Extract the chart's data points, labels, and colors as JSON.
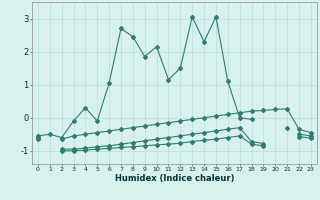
{
  "xlabel": "Humidex (Indice chaleur)",
  "x": [
    0,
    1,
    2,
    3,
    4,
    5,
    6,
    7,
    8,
    9,
    10,
    11,
    12,
    13,
    14,
    15,
    16,
    17,
    18,
    19,
    20,
    21,
    22,
    23
  ],
  "line1": [
    -0.55,
    -0.5,
    -0.6,
    -0.1,
    0.3,
    -0.1,
    1.05,
    2.7,
    2.45,
    1.85,
    2.15,
    1.15,
    1.5,
    3.05,
    2.3,
    3.05,
    1.1,
    0.0,
    -0.05,
    null,
    null,
    -0.3,
    null,
    null
  ],
  "line2": [
    -0.55,
    null,
    -0.65,
    -0.55,
    -0.5,
    -0.45,
    -0.4,
    -0.35,
    -0.3,
    -0.25,
    -0.2,
    -0.15,
    -0.1,
    -0.05,
    0.0,
    0.05,
    0.1,
    0.15,
    0.2,
    0.22,
    0.25,
    0.27,
    -0.35,
    -0.45
  ],
  "line3": [
    -0.6,
    null,
    -0.95,
    -0.95,
    -0.92,
    -0.88,
    -0.85,
    -0.8,
    -0.75,
    -0.7,
    -0.65,
    -0.6,
    -0.55,
    -0.5,
    -0.45,
    -0.4,
    -0.35,
    -0.3,
    -0.72,
    -0.78,
    null,
    null,
    -0.5,
    -0.55
  ],
  "line4": [
    -0.65,
    null,
    -1.0,
    -1.0,
    -0.98,
    -0.95,
    -0.93,
    -0.9,
    -0.88,
    -0.85,
    -0.82,
    -0.8,
    -0.77,
    -0.72,
    -0.68,
    -0.65,
    -0.6,
    -0.55,
    -0.8,
    -0.85,
    null,
    null,
    -0.57,
    -0.62
  ],
  "bg_color": "#d8f0ee",
  "grid_color": "#b8dcd8",
  "line_color": "#2e7d6e",
  "ylim": [
    -1.4,
    3.5
  ],
  "yticks": [
    -1,
    0,
    1,
    2,
    3
  ],
  "xlim": [
    -0.5,
    23.5
  ]
}
